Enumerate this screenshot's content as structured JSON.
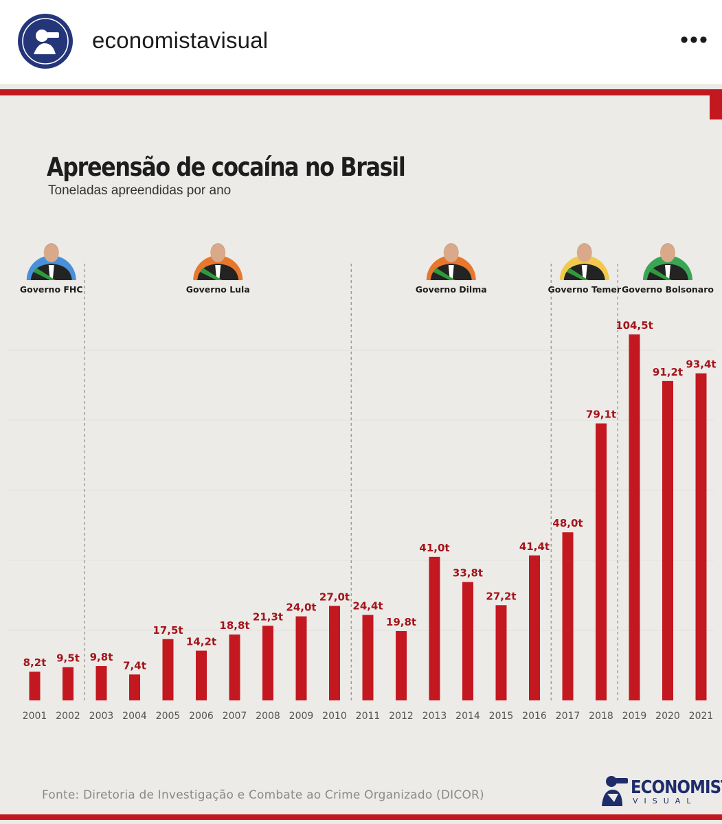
{
  "header": {
    "username": "economistavisual",
    "more_icon": "more-horizontal-icon"
  },
  "colors": {
    "accent_red": "#c3181f",
    "bar_red": "#c3181f",
    "brand_blue": "#1e2c6b",
    "background": "#ecebe7"
  },
  "brand": {
    "name": "ECONOMISTA",
    "sub": "VISUAL"
  },
  "source": "Fonte: Diretoria de Investigação e Combate ao Crime Organizado (DICOR)",
  "chart_data": {
    "type": "bar",
    "title": "Apreensão de cocaína no Brasil",
    "subtitle": "Toneladas apreendidas por ano",
    "xlabel": "",
    "ylabel": "",
    "ylim": [
      0,
      110
    ],
    "grid": false,
    "categories": [
      "2001",
      "2002",
      "2003",
      "2004",
      "2005",
      "2006",
      "2007",
      "2008",
      "2009",
      "2010",
      "2011",
      "2012",
      "2013",
      "2014",
      "2015",
      "2016",
      "2017",
      "2018",
      "2019",
      "2020",
      "2021"
    ],
    "values": [
      8.2,
      9.5,
      9.8,
      7.4,
      17.5,
      14.2,
      18.8,
      21.3,
      24.0,
      27.0,
      24.4,
      19.8,
      41.0,
      33.8,
      27.2,
      41.4,
      48.0,
      79.1,
      104.5,
      91.2,
      93.4
    ],
    "value_labels": [
      "8,2t",
      "9,5t",
      "9,8t",
      "7,4t",
      "17,5t",
      "14,2t",
      "18,8t",
      "21,3t",
      "24,0t",
      "27,0t",
      "24,4t",
      "19,8t",
      "41,0t",
      "33,8t",
      "27,2t",
      "41,4t",
      "48,0t",
      "79,1t",
      "104,5t",
      "91,2t",
      "93,4t"
    ],
    "governments": [
      {
        "name": "Governo FHC",
        "start_index": 0,
        "end_index": 1,
        "color": "#4a90d9"
      },
      {
        "name": "Governo Lula",
        "start_index": 2,
        "end_index": 9,
        "color": "#e8772e"
      },
      {
        "name": "Governo Dilma",
        "start_index": 10,
        "end_index": 15,
        "color": "#e8772e"
      },
      {
        "name": "Governo Temer",
        "start_index": 16,
        "end_index": 17,
        "color": "#f2c94c"
      },
      {
        "name": "Governo Bolsonaro",
        "start_index": 18,
        "end_index": 20,
        "color": "#3aa655"
      }
    ]
  }
}
